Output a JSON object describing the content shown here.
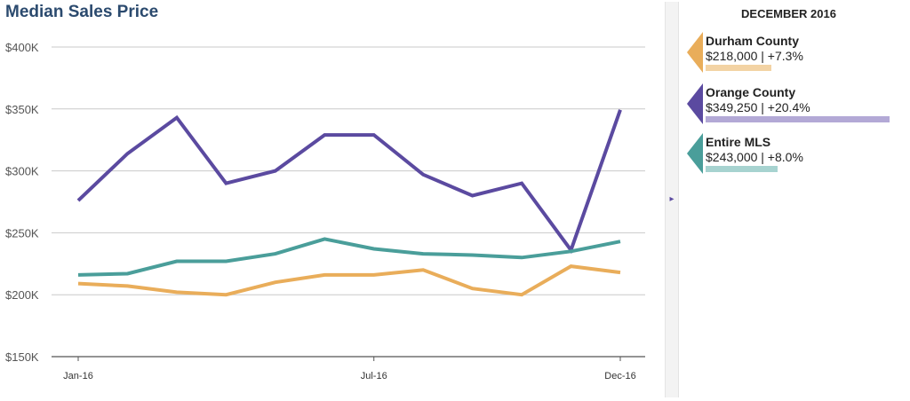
{
  "title": "Median Sales Price",
  "panel": {
    "heading": "DECEMBER 2016",
    "items": [
      {
        "name": "Durham County",
        "value": "$218,000 | +7.3%",
        "change_pct": 7.3,
        "color": "#e9ad5a",
        "bar_color": "#f3d3a4"
      },
      {
        "name": "Orange County",
        "value": "$349,250 | +20.4%",
        "change_pct": 20.4,
        "color": "#5b4aa0",
        "bar_color": "#b3a9d6"
      },
      {
        "name": "Entire MLS",
        "value": "$243,000 | +8.0%",
        "change_pct": 8.0,
        "color": "#4a9e9a",
        "bar_color": "#a7d3d0"
      }
    ],
    "toggle_icon": "▸"
  },
  "chart_data": {
    "type": "line",
    "title": "Median Sales Price",
    "xlabel": "",
    "ylabel": "",
    "ylim": [
      150000,
      400000
    ],
    "yticks": [
      150000,
      200000,
      250000,
      300000,
      350000,
      400000
    ],
    "ytick_labels": [
      "$150K",
      "$200K",
      "$250K",
      "$300K",
      "$350K",
      "$400K"
    ],
    "x": [
      "Jan-16",
      "Feb-16",
      "Mar-16",
      "Apr-16",
      "May-16",
      "Jun-16",
      "Jul-16",
      "Aug-16",
      "Sep-16",
      "Oct-16",
      "Nov-16",
      "Dec-16"
    ],
    "xtick_labels": {
      "0": "Jan-16",
      "6": "Jul-16",
      "11": "Dec-16"
    },
    "grid": true,
    "series": [
      {
        "name": "Orange County",
        "color": "#5b4aa0",
        "values": [
          276000,
          314000,
          343000,
          290000,
          300000,
          329000,
          329000,
          297000,
          280000,
          290000,
          236000,
          349250
        ]
      },
      {
        "name": "Entire MLS",
        "color": "#4a9e9a",
        "values": [
          216000,
          217000,
          227000,
          227000,
          233000,
          245000,
          237000,
          233000,
          232000,
          230000,
          235000,
          243000
        ]
      },
      {
        "name": "Durham County",
        "color": "#e9ad5a",
        "values": [
          209000,
          207000,
          202000,
          200000,
          210000,
          216000,
          216000,
          220000,
          205000,
          200000,
          223000,
          218000
        ]
      }
    ]
  }
}
